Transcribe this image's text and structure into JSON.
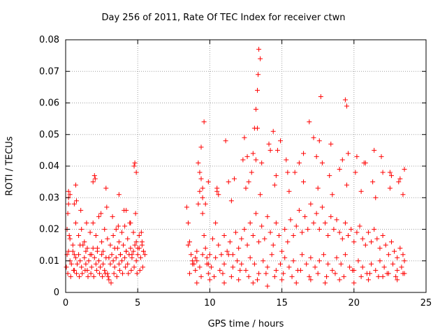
{
  "chart_data": {
    "type": "scatter",
    "title": "Day 256 of 2011, Rate Of TEC Index for receiver ctwn",
    "xlabel": "GPS time / hours",
    "ylabel": "ROTI / TECUs",
    "xlim": [
      0,
      25
    ],
    "ylim": [
      0,
      0.08
    ],
    "xticks": [
      "0",
      "5",
      "10",
      "15",
      "20",
      "25"
    ],
    "yticks": [
      "0",
      "0.01",
      "0.02",
      "0.03",
      "0.04",
      "0.05",
      "0.06",
      "0.07",
      "0.08"
    ],
    "grid": true,
    "marker": "+",
    "marker_color": "#ff0000",
    "series": [
      {
        "x": [
          0.05,
          0.1,
          0.15,
          0.2,
          0.25,
          0.3,
          0.4,
          0.5,
          0.6,
          0.7,
          0.8,
          0.9,
          1.0,
          1.1,
          1.2,
          1.3,
          1.4,
          1.5,
          1.6,
          1.7,
          1.8,
          1.9,
          2.0,
          2.1,
          2.2,
          2.3,
          2.4,
          2.5,
          2.6,
          2.7,
          2.8,
          2.9,
          3.0,
          3.1,
          3.2,
          3.3,
          3.4,
          3.5,
          3.6,
          3.7,
          3.8,
          3.9,
          4.0,
          4.1,
          4.2,
          4.3,
          4.4,
          4.5,
          4.6,
          4.7,
          4.8,
          4.9,
          5.0,
          5.1,
          5.2,
          5.3,
          5.4,
          5.5,
          0.1,
          0.2,
          0.3,
          0.5,
          0.7,
          0.9,
          1.1,
          1.3,
          1.5,
          1.7,
          1.9,
          2.1,
          2.3,
          2.5,
          2.7,
          2.9,
          3.1,
          3.3,
          3.5,
          3.7,
          3.9,
          4.1,
          4.3,
          4.5,
          4.7,
          4.9,
          5.1,
          5.3,
          0.15,
          0.35,
          0.55,
          0.75,
          0.95,
          1.15,
          1.35,
          1.55,
          1.75,
          1.95,
          2.15,
          2.35,
          2.55,
          2.75,
          2.95,
          3.15,
          3.35,
          3.55,
          3.75,
          3.95,
          4.15,
          4.35,
          4.55,
          4.75,
          4.95,
          5.15,
          5.35,
          0.2,
          0.6,
          1.0,
          1.4,
          1.8,
          2.2,
          2.6,
          3.0,
          3.4,
          3.8,
          4.2,
          4.6,
          5.0,
          5.4,
          0.3,
          0.7,
          1.05,
          1.45,
          2.05,
          2.45,
          2.85,
          3.25,
          3.65,
          4.05,
          4.45,
          4.85,
          5.25,
          0.2,
          0.6,
          0.75,
          1.9,
          2.0,
          2.8,
          3.7,
          4.2,
          4.75,
          4.8,
          4.9
        ],
        "y": [
          0.008,
          0.012,
          0.025,
          0.03,
          0.018,
          0.01,
          0.009,
          0.013,
          0.007,
          0.011,
          0.009,
          0.012,
          0.01,
          0.008,
          0.015,
          0.011,
          0.009,
          0.007,
          0.01,
          0.012,
          0.008,
          0.014,
          0.011,
          0.009,
          0.013,
          0.01,
          0.008,
          0.012,
          0.009,
          0.007,
          0.011,
          0.006,
          0.004,
          0.009,
          0.012,
          0.01,
          0.008,
          0.011,
          0.014,
          0.009,
          0.012,
          0.01,
          0.015,
          0.011,
          0.013,
          0.009,
          0.012,
          0.014,
          0.011,
          0.013,
          0.015,
          0.01,
          0.012,
          0.014,
          0.011,
          0.016,
          0.013,
          0.012,
          0.02,
          0.028,
          0.017,
          0.015,
          0.022,
          0.018,
          0.02,
          0.016,
          0.014,
          0.019,
          0.022,
          0.018,
          0.024,
          0.016,
          0.02,
          0.017,
          0.015,
          0.018,
          0.02,
          0.016,
          0.019,
          0.021,
          0.017,
          0.022,
          0.019,
          0.016,
          0.018,
          0.015,
          0.006,
          0.005,
          0.007,
          0.006,
          0.005,
          0.006,
          0.007,
          0.005,
          0.006,
          0.005,
          0.007,
          0.006,
          0.005,
          0.006,
          0.005,
          0.003,
          0.006,
          0.005,
          0.007,
          0.006,
          0.008,
          0.006,
          0.007,
          0.008,
          0.006,
          0.007,
          0.008,
          0.013,
          0.012,
          0.015,
          0.013,
          0.012,
          0.014,
          0.013,
          0.011,
          0.014,
          0.012,
          0.013,
          0.012,
          0.014,
          0.013,
          0.031,
          0.034,
          0.026,
          0.022,
          0.036,
          0.025,
          0.027,
          0.024,
          0.021,
          0.026,
          0.022,
          0.025,
          0.019,
          0.032,
          0.028,
          0.029,
          0.035,
          0.037,
          0.033,
          0.031,
          0.026,
          0.04,
          0.041,
          0.038
        ]
      },
      {
        "x": [
          8.4,
          8.5,
          8.6,
          8.7,
          8.8,
          8.9,
          9.0,
          9.1,
          9.2,
          9.3,
          9.4,
          9.5,
          9.6,
          9.7,
          9.8,
          9.9,
          10.0,
          10.2,
          10.4,
          10.6,
          10.8,
          11.0,
          11.2,
          11.4,
          11.6,
          11.8,
          12.0,
          12.2,
          12.4,
          12.6,
          12.8,
          13.0,
          13.2,
          13.4,
          13.6,
          13.8,
          14.0,
          14.2,
          14.4,
          14.6,
          14.8,
          15.0,
          15.2,
          15.4,
          15.6,
          15.8,
          16.0,
          16.2,
          16.4,
          16.6,
          16.8,
          17.0,
          17.2,
          17.4,
          17.6,
          17.8,
          18.0,
          18.2,
          18.4,
          18.6,
          18.8,
          19.0,
          19.2,
          19.4,
          19.6,
          19.8,
          20.0,
          20.2,
          20.4,
          20.6,
          20.8,
          21.0,
          21.2,
          21.4,
          21.6,
          21.8,
          22.0,
          22.2,
          22.4,
          22.6,
          22.8,
          23.0,
          23.2,
          23.4,
          23.5,
          8.5,
          8.8,
          9.1,
          9.3,
          9.5,
          9.8,
          10.1,
          10.4,
          10.7,
          11.0,
          11.3,
          11.6,
          11.9,
          12.2,
          12.5,
          12.8,
          13.1,
          13.4,
          13.7,
          14.0,
          14.3,
          14.6,
          14.9,
          15.2,
          15.5,
          15.8,
          16.1,
          16.4,
          16.7,
          17.0,
          17.3,
          17.6,
          17.9,
          18.2,
          18.5,
          18.8,
          19.1,
          19.4,
          19.7,
          20.0,
          20.3,
          20.6,
          20.9,
          21.2,
          21.5,
          21.8,
          22.1,
          22.4,
          22.7,
          23.0,
          23.3,
          23.5,
          8.6,
          9.0,
          9.4,
          9.9,
          10.3,
          10.9,
          11.5,
          12.1,
          12.7,
          13.3,
          13.9,
          14.5,
          15.1,
          15.7,
          16.3,
          16.9,
          17.5,
          18.1,
          18.7,
          19.3,
          19.9,
          20.5,
          21.1,
          21.7,
          22.3,
          22.9,
          23.4,
          9.2,
          9.4,
          9.6,
          10.5,
          11.3,
          12.3,
          12.9,
          13.1,
          13.2,
          13.3,
          13.35,
          13.4,
          13.5,
          14.1,
          14.4,
          14.7,
          15.4,
          16.2,
          16.9,
          17.4,
          17.6,
          17.7,
          18.3,
          19.2,
          19.4,
          19.5,
          20.1,
          20.7,
          21.3,
          21.9,
          22.5,
          23.1,
          23.5,
          9.3,
          9.5,
          9.7,
          9.9,
          10.6,
          11.1,
          11.7,
          12.4,
          12.6,
          12.7,
          13.0,
          13.2,
          13.3,
          13.6,
          14.2,
          14.6,
          14.9,
          15.3,
          15.9,
          16.5,
          17.2,
          17.8,
          18.4,
          19.0,
          19.6,
          20.2,
          20.8,
          21.4,
          22.0,
          22.6,
          23.2,
          9.1,
          10.0,
          11.0,
          12.0,
          13.0,
          14.0,
          15.0,
          16.0,
          17.0,
          18.0,
          19.0,
          20.0,
          21.0,
          22.0,
          23.0,
          9.5,
          10.5,
          11.5,
          12.5,
          13.5,
          14.5,
          15.5,
          16.5,
          17.5,
          18.5,
          19.5,
          20.5,
          21.5,
          22.5,
          23.4
        ],
        "y": [
          0.027,
          0.022,
          0.016,
          0.012,
          0.01,
          0.009,
          0.011,
          0.013,
          0.028,
          0.032,
          0.036,
          0.025,
          0.018,
          0.014,
          0.011,
          0.009,
          0.012,
          0.017,
          0.022,
          0.015,
          0.012,
          0.018,
          0.013,
          0.016,
          0.012,
          0.019,
          0.014,
          0.017,
          0.02,
          0.015,
          0.022,
          0.018,
          0.025,
          0.016,
          0.021,
          0.017,
          0.024,
          0.019,
          0.015,
          0.022,
          0.018,
          0.013,
          0.02,
          0.016,
          0.023,
          0.018,
          0.021,
          0.026,
          0.019,
          0.024,
          0.02,
          0.028,
          0.022,
          0.025,
          0.02,
          0.027,
          0.022,
          0.018,
          0.024,
          0.02,
          0.023,
          0.019,
          0.017,
          0.022,
          0.018,
          0.02,
          0.016,
          0.019,
          0.021,
          0.017,
          0.015,
          0.019,
          0.016,
          0.02,
          0.017,
          0.014,
          0.018,
          0.015,
          0.012,
          0.016,
          0.013,
          0.011,
          0.014,
          0.012,
          0.01,
          0.015,
          0.009,
          0.01,
          0.008,
          0.012,
          0.009,
          0.008,
          0.011,
          0.007,
          0.009,
          0.012,
          0.008,
          0.01,
          0.009,
          0.007,
          0.011,
          0.009,
          0.006,
          0.01,
          0.008,
          0.012,
          0.007,
          0.009,
          0.011,
          0.008,
          0.01,
          0.007,
          0.012,
          0.009,
          0.011,
          0.008,
          0.01,
          0.012,
          0.009,
          0.007,
          0.011,
          0.009,
          0.012,
          0.008,
          0.007,
          0.01,
          0.008,
          0.006,
          0.009,
          0.007,
          0.01,
          0.008,
          0.006,
          0.009,
          0.007,
          0.008,
          0.006,
          0.006,
          0.007,
          0.005,
          0.006,
          0.005,
          0.006,
          0.005,
          0.007,
          0.005,
          0.004,
          0.006,
          0.005,
          0.006,
          0.005,
          0.007,
          0.005,
          0.006,
          0.005,
          0.006,
          0.005,
          0.007,
          0.005,
          0.006,
          0.005,
          0.006,
          0.005,
          0.006,
          0.041,
          0.046,
          0.054,
          0.033,
          0.035,
          0.042,
          0.038,
          0.052,
          0.058,
          0.064,
          0.069,
          0.077,
          0.074,
          0.047,
          0.051,
          0.045,
          0.038,
          0.041,
          0.054,
          0.043,
          0.048,
          0.062,
          0.037,
          0.042,
          0.061,
          0.059,
          0.038,
          0.041,
          0.035,
          0.043,
          0.038,
          0.035,
          0.039,
          0.038,
          0.033,
          0.028,
          0.035,
          0.031,
          0.048,
          0.036,
          0.049,
          0.043,
          0.035,
          0.044,
          0.042,
          0.052,
          0.041,
          0.045,
          0.037,
          0.048,
          0.042,
          0.038,
          0.044,
          0.049,
          0.041,
          0.047,
          0.039,
          0.044,
          0.043,
          0.041,
          0.045,
          0.038,
          0.037,
          0.036,
          0.003,
          0.004,
          0.003,
          0.004,
          0.003,
          0.002,
          0.004,
          0.003,
          0.004,
          0.003,
          0.004,
          0.003,
          0.004,
          0.005,
          0.004,
          0.03,
          0.032,
          0.029,
          0.033,
          0.031,
          0.034,
          0.032,
          0.035,
          0.033,
          0.031,
          0.034,
          0.032,
          0.03,
          0.033,
          0.031
        ]
      }
    ]
  }
}
